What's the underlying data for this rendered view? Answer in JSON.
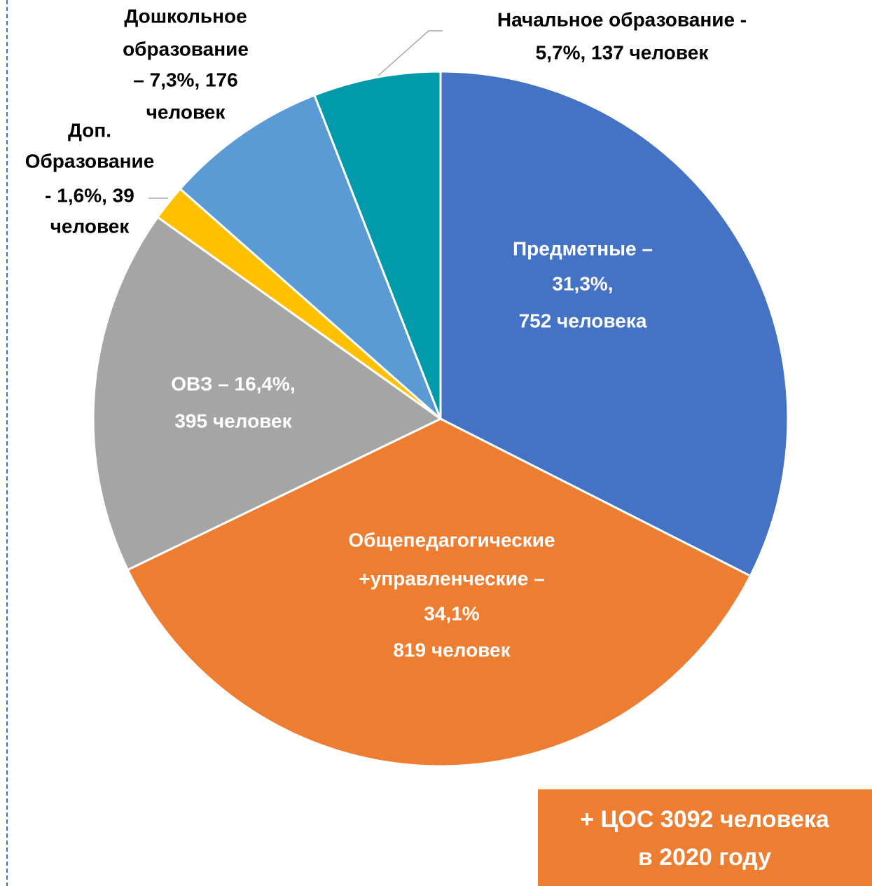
{
  "chart_data": {
    "type": "pie",
    "values": [
      31.3,
      34.1,
      16.4,
      1.6,
      7.3,
      5.7
    ],
    "value_labels": [
      [
        "Предметные –",
        "31,3%,",
        "752 человека"
      ],
      [
        "Общепедагогические",
        "+управленческие –",
        "34,1%",
        "819 человек"
      ],
      [
        "ОВЗ – 16,4%,",
        "395 человек"
      ],
      [
        "Доп.",
        "Образование",
        "-  1,6%, 39",
        "человек"
      ],
      [
        "Дошкольное",
        "образование",
        "– 7,3%, 176",
        "человек"
      ],
      [
        "Начальное образование -",
        "5,7%, 137 человек"
      ]
    ],
    "colors": [
      "#4472c4",
      "#ed7d31",
      "#a5a5a5",
      "#ffc000",
      "#5b9bd5",
      "#009aab"
    ],
    "annotation": [
      "+ ЦОС 3092 человека",
      "в 2020 году"
    ]
  }
}
